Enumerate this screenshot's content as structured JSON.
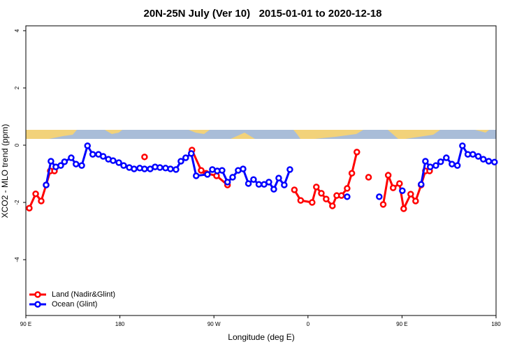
{
  "chart_data": {
    "type": "line",
    "title": "20N-25N July (Ver 10)   2015-01-01 to 2020-12-18",
    "x_label": "Longitude (deg E)",
    "y_label": "XCO2 - MLO trend (ppm)",
    "xlim": [
      90,
      540
    ],
    "ylim": [
      -5.95,
      4.17
    ],
    "xticks": [
      {
        "value": 90,
        "label": "90 E"
      },
      180,
      {
        "value": 270,
        "label": "90 W"
      },
      {
        "value": 360,
        "label": "0"
      },
      {
        "value": 450,
        "label": "90 E"
      },
      {
        "value": 540,
        "label": "180"
      }
    ],
    "yticks": [
      -4,
      -2,
      0,
      2,
      4
    ],
    "legend": "bottom-left",
    "series": [
      {
        "name": "Land (Nadir&Glint)",
        "color": "#ff0000",
        "x": [
          93.3,
          99.4,
          104.7,
          109.4,
          113.4,
          117.4,
          null,
          203.6,
          null,
          249,
          257.8,
          262.5,
          272.5,
          283,
          null,
          347,
          353,
          364,
          368,
          372.8,
          377.4,
          383.4,
          387.5,
          392,
          397.5,
          402,
          406.8,
          null,
          418,
          null,
          432,
          436.8,
          441.5,
          447.6,
          451.6,
          458.3,
          463,
          468.3,
          472.4,
          476.4
        ],
        "values": [
          -2.2,
          -1.7,
          -1.95,
          -1.39,
          -0.9,
          -0.9,
          null,
          -0.41,
          null,
          -0.17,
          -0.88,
          -0.98,
          -1.07,
          -1.39,
          null,
          -1.56,
          -1.93,
          -2.0,
          -1.46,
          -1.68,
          -1.88,
          -2.12,
          -1.76,
          -1.76,
          -1.51,
          -0.98,
          -0.24,
          null,
          -1.12,
          null,
          -2.07,
          -1.05,
          -1.49,
          -1.34,
          -2.22,
          -1.71,
          -1.95,
          -1.39,
          -0.9,
          -0.9
        ]
      },
      {
        "name": "Ocean (Glint)",
        "color": "#0000ff",
        "x": [
          109.4,
          114,
          118.7,
          123.4,
          127,
          133.4,
          138,
          143.5,
          149,
          154,
          159.5,
          164,
          169,
          173.5,
          179,
          183.6,
          189,
          193.6,
          199,
          203.6,
          209,
          213.7,
          218.3,
          223.7,
          228.4,
          233.7,
          238.4,
          243,
          248.3,
          253,
          263.8,
          268.5,
          273.2,
          277.8,
          283,
          287.9,
          293.2,
          297.9,
          303,
          307.9,
          313,
          318,
          322.6,
          327.3,
          332,
          337.3,
          342.7,
          null,
          397.5,
          null,
          428.2,
          null,
          450.3,
          null,
          468.3,
          472.4,
          477,
          482.4,
          487,
          492.4,
          497.8,
          503,
          507.8,
          513,
          517.8,
          523,
          527.8,
          533,
          538.5
        ],
        "values": [
          -1.39,
          -0.56,
          -0.76,
          -0.71,
          -0.58,
          -0.44,
          -0.66,
          -0.71,
          -0.02,
          -0.32,
          -0.32,
          -0.39,
          -0.49,
          -0.54,
          -0.61,
          -0.71,
          -0.78,
          -0.83,
          -0.8,
          -0.83,
          -0.83,
          -0.76,
          -0.78,
          -0.8,
          -0.83,
          -0.85,
          -0.56,
          -0.44,
          -0.29,
          -1.07,
          -1.02,
          -0.85,
          -0.9,
          -0.88,
          -1.29,
          -1.12,
          -0.88,
          -0.83,
          -1.34,
          -1.2,
          -1.37,
          -1.37,
          -1.29,
          -1.54,
          -1.15,
          -1.39,
          -0.85,
          null,
          -1.8,
          null,
          -1.8,
          null,
          -1.59,
          null,
          -1.37,
          -0.56,
          -0.76,
          -0.71,
          -0.58,
          -0.44,
          -0.66,
          -0.71,
          -0.02,
          -0.32,
          -0.32,
          -0.39,
          -0.49,
          -0.56,
          -0.59
        ]
      }
    ]
  }
}
